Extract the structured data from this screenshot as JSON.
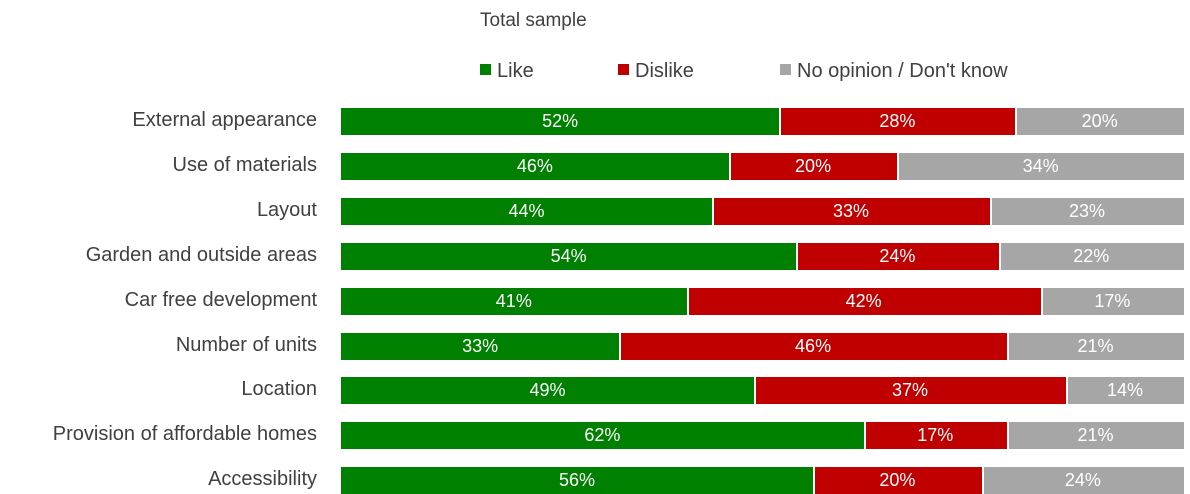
{
  "chart_data": {
    "type": "bar",
    "orientation": "horizontal",
    "stacked": true,
    "title": "Total sample",
    "legend_position": "top",
    "categories": [
      "External appearance",
      "Use of materials",
      "Layout",
      "Garden and outside areas",
      "Car free development",
      "Number of units",
      "Location",
      "Provision of affordable homes",
      "Accessibility"
    ],
    "series": [
      {
        "name": "Like",
        "color": "#008000",
        "values": [
          52,
          46,
          44,
          54,
          41,
          33,
          49,
          62,
          56
        ],
        "labels": [
          "52%",
          "46%",
          "44%",
          "54%",
          "41%",
          "33%",
          "49%",
          "62%",
          "56%"
        ]
      },
      {
        "name": "Dislike",
        "color": "#c00000",
        "values": [
          28,
          20,
          33,
          24,
          42,
          46,
          37,
          17,
          20
        ],
        "labels": [
          "28%",
          "20%",
          "33%",
          "24%",
          "42%",
          "46%",
          "37%",
          "17%",
          "20%"
        ]
      },
      {
        "name": "No opinion / Don't know",
        "color": "#a6a6a6",
        "values": [
          20,
          34,
          23,
          22,
          17,
          21,
          14,
          21,
          24
        ],
        "labels": [
          "20%",
          "34%",
          "23%",
          "22%",
          "17%",
          "21%",
          "14%",
          "21%",
          "24%"
        ]
      }
    ],
    "xlim": [
      0,
      100
    ],
    "grid": false
  }
}
